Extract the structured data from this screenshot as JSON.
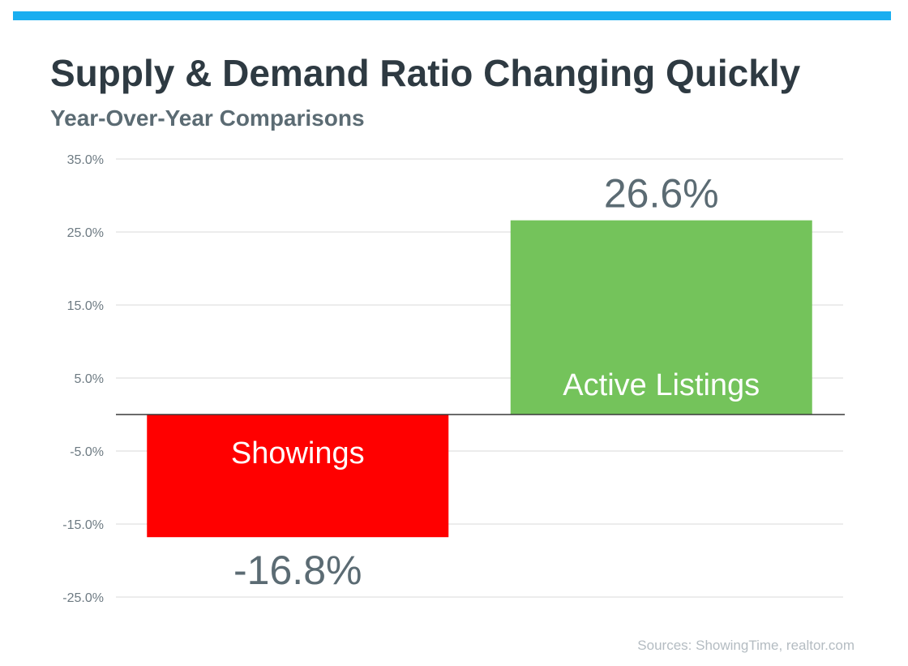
{
  "header": {
    "title": "Supply & Demand Ratio Changing Quickly",
    "subtitle": "Year-Over-Year Comparisons",
    "accent_color": "#1aaef0"
  },
  "chart_data": {
    "type": "bar",
    "categories": [
      "Showings",
      "Active Listings"
    ],
    "values": [
      -16.8,
      26.6
    ],
    "value_labels": [
      "-16.8%",
      "26.6%"
    ],
    "colors": [
      "#ff0000",
      "#74c35b"
    ],
    "ylim": [
      -25,
      35
    ],
    "y_ticks": [
      35,
      25,
      15,
      5,
      -5,
      -15,
      -25
    ],
    "y_tick_labels": [
      "35.0%",
      "25.0%",
      "15.0%",
      "5.0%",
      "-5.0%",
      "-15.0%",
      "-25.0%"
    ],
    "grid": true,
    "legend": "none",
    "category_labels_inside_bars": true
  },
  "footer": {
    "source": "Sources: ShowingTime, realtor.com"
  }
}
